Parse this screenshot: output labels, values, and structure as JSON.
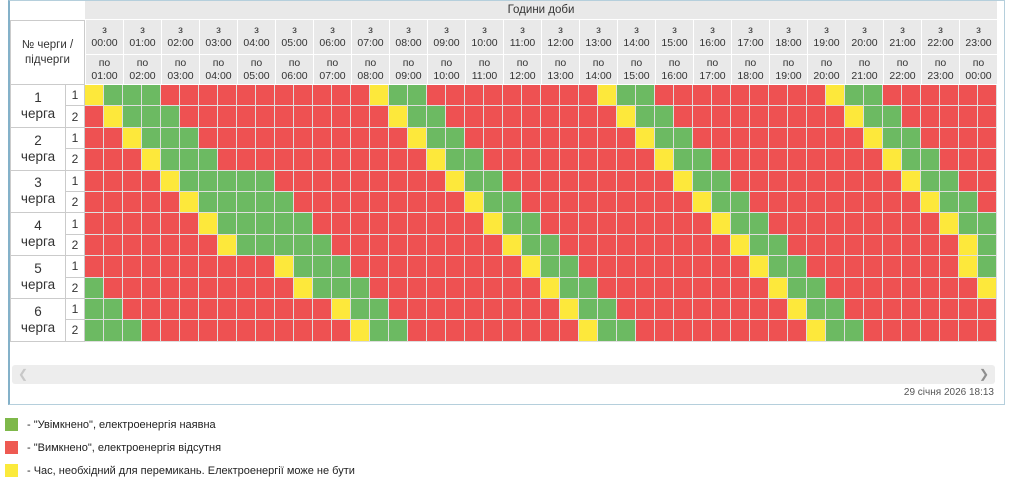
{
  "schedule": {
    "title": "Години доби",
    "corner_line1": "№ черги /",
    "corner_line2": "підчерги",
    "from_prefix": "з",
    "to_prefix": "по",
    "columns": [
      {
        "from": "00:00",
        "to": "01:00"
      },
      {
        "from": "01:00",
        "to": "02:00"
      },
      {
        "from": "02:00",
        "to": "03:00"
      },
      {
        "from": "03:00",
        "to": "04:00"
      },
      {
        "from": "04:00",
        "to": "05:00"
      },
      {
        "from": "05:00",
        "to": "06:00"
      },
      {
        "from": "06:00",
        "to": "07:00"
      },
      {
        "from": "07:00",
        "to": "08:00"
      },
      {
        "from": "08:00",
        "to": "09:00"
      },
      {
        "from": "09:00",
        "to": "10:00"
      },
      {
        "from": "10:00",
        "to": "11:00"
      },
      {
        "from": "11:00",
        "to": "12:00"
      },
      {
        "from": "12:00",
        "to": "13:00"
      },
      {
        "from": "13:00",
        "to": "14:00"
      },
      {
        "from": "14:00",
        "to": "15:00"
      },
      {
        "from": "15:00",
        "to": "16:00"
      },
      {
        "from": "16:00",
        "to": "17:00"
      },
      {
        "from": "17:00",
        "to": "18:00"
      },
      {
        "from": "18:00",
        "to": "19:00"
      },
      {
        "from": "19:00",
        "to": "20:00"
      },
      {
        "from": "20:00",
        "to": "21:00"
      },
      {
        "from": "21:00",
        "to": "22:00"
      },
      {
        "from": "22:00",
        "to": "23:00"
      },
      {
        "from": "23:00",
        "to": "00:00"
      }
    ],
    "cell_legend_note": "each hour column contains two half-hour cells; G=on, R=off, Y=switching",
    "queues": [
      {
        "num": "1",
        "word": "черга",
        "subs": [
          {
            "num": "1",
            "cells": "YGGGRRRRRRRRRRRYGGRRRRRRRRRYGGRRRRRRRRRYGGRRRRRR"
          },
          {
            "num": "2",
            "cells": "RYGGGRRRRRRRRRRRYGGRRRRRRRRRYGGRRRRRRRRRYGGRRRRR"
          }
        ]
      },
      {
        "num": "2",
        "word": "черга",
        "subs": [
          {
            "num": "1",
            "cells": "RRYGGGRRRRRRRRRRRYGGRRRRRRRRRYGGRRRRRRRRRYGGRRRR"
          },
          {
            "num": "2",
            "cells": "RRRYGGGRRRRRRRRRRRYGGRRRRRRRRRYGGRRRRRRRRRYGGRRR"
          }
        ]
      },
      {
        "num": "3",
        "word": "черга",
        "subs": [
          {
            "num": "1",
            "cells": "RRRRYGGGGGRRRRRRRRRYGGRRRRRRRRRYGGRRRRRRRRRYGGRR"
          },
          {
            "num": "2",
            "cells": "RRRRRYGGGGGRRRRRRRRRYGGRRRRRRRRRYGGRRRRRRRRRYGGR"
          }
        ]
      },
      {
        "num": "4",
        "word": "черга",
        "subs": [
          {
            "num": "1",
            "cells": "RRRRRRYGGGGGRRRRRRRRRYGGRRRRRRRRRYGGRRRRRRRRRYGG"
          },
          {
            "num": "2",
            "cells": "RRRRRRRYGGGGGRRRRRRRRRYGGRRRRRRRRRYGGRRRRRRRRRYG"
          }
        ]
      },
      {
        "num": "5",
        "word": "черга",
        "subs": [
          {
            "num": "1",
            "cells": "RRRRRRRRRRYGGGRRRRRRRRRYGGRRRRRRRRRYGGRRRRRRRRYG"
          },
          {
            "num": "2",
            "cells": "GRRRRRRRRRRYGGGRRRRRRRRRYGGRRRRRRRRRYGGRRRRRRRRY"
          }
        ]
      },
      {
        "num": "6",
        "word": "черга",
        "subs": [
          {
            "num": "1",
            "cells": "GGRRRRRRRRRRRYGGRRRRRRRRRYGGRRRRRRRRRYGGRRRRRRRR"
          },
          {
            "num": "2",
            "cells": "GGGRRRRRRRRRRRYGGRRRRRRRRRYGGRRRRRRRRRYGGRRRRRRR"
          }
        ]
      }
    ]
  },
  "colors": {
    "cell": {
      "G": "#6cba62",
      "R": "#ee5152",
      "Y": "#fde83b"
    },
    "legend": {
      "G": "#7eb84a",
      "R": "#ee5a52",
      "Y": "#fbea3c"
    }
  },
  "scrollbar": {
    "left_char": "❮",
    "right_char": "❯"
  },
  "footer": {
    "timestamp": "29 січня 2026 18:13"
  },
  "legend": {
    "items": [
      {
        "color_key": "G",
        "text": "- \"Увімкнено\", електроенергія наявна"
      },
      {
        "color_key": "R",
        "text": "- \"Вимкнено\", електроенергія відсутня"
      },
      {
        "color_key": "Y",
        "text": "- Час, необхідний для перемикань. Електроенергії може не бути"
      }
    ]
  }
}
